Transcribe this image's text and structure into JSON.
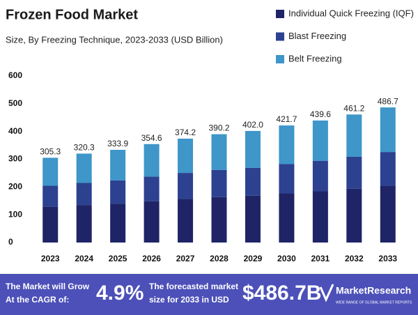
{
  "chart_data": {
    "type": "stacked_bar",
    "title": "Frozen Food Market",
    "subtitle": "Size, By Freezing Technique, 2023-2033 (USD Billion)",
    "categories": [
      "2023",
      "2024",
      "2025",
      "2026",
      "2027",
      "2028",
      "2029",
      "2030",
      "2031",
      "2032",
      "2033"
    ],
    "series": [
      {
        "name": "Individual Quick Freezing (IQF)",
        "color": "#1e2466",
        "values": [
          128.2,
          134.5,
          140.2,
          148.9,
          157.2,
          163.9,
          168.8,
          177.1,
          184.6,
          193.7,
          204.4
        ]
      },
      {
        "name": "Blast Freezing",
        "color": "#2c4190",
        "values": [
          76.3,
          80.1,
          83.5,
          88.7,
          93.6,
          97.6,
          100.5,
          105.4,
          109.9,
          115.3,
          121.7
        ]
      },
      {
        "name": "Belt Freezing",
        "color": "#3e96c9",
        "values": [
          100.8,
          105.7,
          110.2,
          117.0,
          123.4,
          128.7,
          132.7,
          139.2,
          145.1,
          152.2,
          160.6
        ]
      }
    ],
    "totals": [
      305.3,
      320.3,
      333.9,
      354.6,
      374.2,
      390.2,
      402.0,
      421.7,
      439.6,
      461.2,
      486.7
    ],
    "total_labels": [
      "305.3",
      "320.3",
      "333.9",
      "354.6",
      "374.2",
      "390.2",
      "402.0",
      "421.7",
      "439.6",
      "461.2",
      "486.7"
    ],
    "ylim": [
      0,
      600
    ],
    "yticks": [
      0,
      100,
      200,
      300,
      400,
      500,
      600
    ],
    "grid": false,
    "legend": "top-right"
  },
  "footer": {
    "cagr_text": "The Market will Grow At the CAGR of:",
    "cagr": "4.9%",
    "forecast_text": "The forecasted market size for 2033 in USD",
    "forecast": "$486.7B",
    "brand": "MarketResearch",
    "tagline": "WIDE RANGE OF GLOBAL MARKET REPORTS"
  }
}
